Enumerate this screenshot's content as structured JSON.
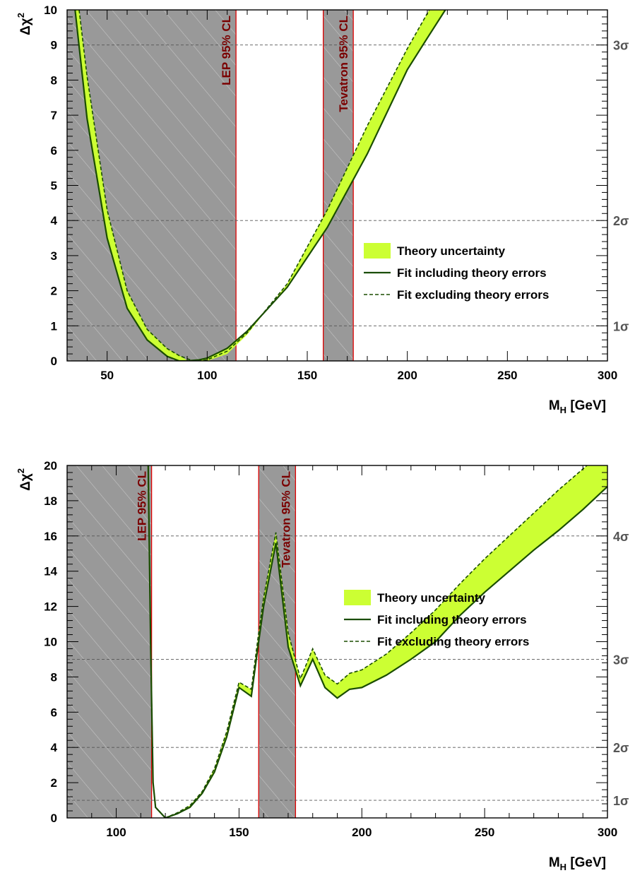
{
  "colors": {
    "band_fill": "#ccff33",
    "line": "#1a4d00",
    "excluded_region": "#999999",
    "region_border": "#dd0000",
    "region_label": "#7a0000",
    "sigma_label": "#555555"
  },
  "chart_data": [
    {
      "type": "line",
      "xlabel": "M",
      "xlabel_sub": "H",
      "xlabel_unit": "[GeV]",
      "ylabel": "Δχ",
      "ylabel_sup": "2",
      "xlim": [
        30,
        300
      ],
      "ylim": [
        0,
        10
      ],
      "x_ticks": [
        50,
        100,
        150,
        200,
        250,
        300
      ],
      "x_tick_labels": [
        "50",
        "100",
        "150",
        "200",
        "250",
        "300"
      ],
      "y_ticks": [
        0,
        1,
        2,
        3,
        4,
        5,
        6,
        7,
        8,
        9,
        10
      ],
      "y_tick_labels": [
        "0",
        "1",
        "2",
        "3",
        "4",
        "5",
        "6",
        "7",
        "8",
        "9",
        "10"
      ],
      "sigma_lines": [
        1,
        4,
        9
      ],
      "sigma_labels": [
        "1σ",
        "2σ",
        "3σ"
      ],
      "excluded_regions": [
        {
          "from": 30,
          "to": 114.4,
          "label": "LEP 95% CL"
        },
        {
          "from": 158,
          "to": 173,
          "label": "Tevatron 95% CL"
        }
      ],
      "legend": {
        "band": "Theory uncertainty",
        "solid": "Fit including theory errors",
        "dashed": "Fit excluding theory errors"
      },
      "series": [
        {
          "name": "Fit including theory errors",
          "x": [
            34,
            40,
            50,
            60,
            70,
            80,
            86,
            90,
            96,
            100,
            110,
            120,
            140,
            160,
            180,
            200,
            210,
            219
          ],
          "values": [
            10,
            6.9,
            3.5,
            1.5,
            0.6,
            0.13,
            0.0,
            0.0,
            0.03,
            0.08,
            0.36,
            0.85,
            2.1,
            3.8,
            5.9,
            8.3,
            9.2,
            10
          ]
        },
        {
          "name": "Fit excluding theory errors",
          "x": [
            36,
            40,
            50,
            60,
            70,
            80,
            86,
            93,
            96,
            100,
            110,
            120,
            140,
            160,
            180,
            200,
            211
          ],
          "values": [
            10,
            8.1,
            4.3,
            2.0,
            0.9,
            0.35,
            0.15,
            0.0,
            0.0,
            0.03,
            0.28,
            0.8,
            2.2,
            4.3,
            6.7,
            8.9,
            10
          ]
        }
      ],
      "band": {
        "x_lower": [
          34,
          40,
          50,
          60,
          70,
          80,
          86,
          90,
          96,
          100,
          110,
          120,
          140,
          160,
          180,
          200,
          210,
          219
        ],
        "lower": [
          10,
          6.9,
          3.5,
          1.5,
          0.6,
          0.13,
          0.0,
          0.0,
          0.03,
          0.08,
          0.36,
          0.85,
          2.1,
          3.8,
          5.9,
          8.3,
          9.2,
          10
        ],
        "x_upper": [
          36,
          40,
          50,
          60,
          70,
          80,
          86,
          90,
          96,
          100,
          110,
          120,
          140,
          160,
          180,
          200,
          211
        ],
        "upper": [
          10,
          8.1,
          4.3,
          2.0,
          0.9,
          0.35,
          0.15,
          0.02,
          0.0,
          0.0,
          0.2,
          0.75,
          2.2,
          4.3,
          6.7,
          8.9,
          10
        ]
      }
    },
    {
      "type": "line",
      "xlabel": "M",
      "xlabel_sub": "H",
      "xlabel_unit": "[GeV]",
      "ylabel": "Δχ",
      "ylabel_sup": "2",
      "xlim": [
        80,
        300
      ],
      "ylim": [
        0,
        20
      ],
      "x_ticks": [
        100,
        150,
        200,
        250,
        300
      ],
      "x_tick_labels": [
        "100",
        "150",
        "200",
        "250",
        "300"
      ],
      "y_ticks": [
        0,
        2,
        4,
        6,
        8,
        10,
        12,
        14,
        16,
        18,
        20
      ],
      "y_tick_labels": [
        "0",
        "2",
        "4",
        "6",
        "8",
        "10",
        "12",
        "14",
        "16",
        "18",
        "20"
      ],
      "sigma_lines": [
        1,
        4,
        9,
        16
      ],
      "sigma_labels": [
        "1σ",
        "2σ",
        "3σ",
        "4σ"
      ],
      "excluded_regions": [
        {
          "from": 80,
          "to": 114.4,
          "label": "LEP 95% CL"
        },
        {
          "from": 158,
          "to": 173,
          "label": "Tevatron 95% CL"
        }
      ],
      "legend": {
        "band": "Theory uncertainty",
        "solid": "Fit including theory errors",
        "dashed": "Fit excluding theory errors"
      },
      "series": [
        {
          "name": "Fit including theory errors",
          "x": [
            113,
            114,
            115,
            116,
            120,
            125,
            130,
            135,
            140,
            145,
            150,
            155,
            158,
            160,
            165,
            170,
            175,
            180,
            185,
            190,
            195,
            200,
            210,
            220,
            230,
            240,
            250,
            260,
            270,
            280,
            290,
            300
          ],
          "values": [
            20,
            10,
            2,
            0.6,
            0,
            0.25,
            0.6,
            1.4,
            2.6,
            4.6,
            7.4,
            6.9,
            10,
            12,
            15.6,
            9.7,
            7.5,
            9.0,
            7.4,
            6.8,
            7.3,
            7.4,
            8.1,
            9.0,
            10.0,
            11.5,
            12.8,
            14.0,
            15.2,
            16.3,
            17.5,
            18.8
          ]
        },
        {
          "name": "Fit excluding theory errors",
          "x": [
            113,
            114,
            115,
            116,
            120,
            125,
            130,
            135,
            140,
            145,
            150,
            155,
            158,
            160,
            165,
            170,
            175,
            180,
            185,
            190,
            195,
            200,
            210,
            220,
            230,
            240,
            250,
            260,
            270,
            280,
            290,
            300
          ],
          "values": [
            20,
            10,
            2,
            0.6,
            0,
            0.3,
            0.7,
            1.5,
            2.8,
            4.9,
            7.7,
            7.3,
            10.5,
            12.5,
            16.2,
            10.5,
            7.9,
            9.6,
            8.1,
            7.6,
            8.2,
            8.4,
            9.3,
            10.5,
            11.8,
            13.3,
            14.7,
            16.0,
            17.3,
            18.6,
            19.8,
            21.0
          ]
        }
      ],
      "band": {
        "x_lower": [
          113,
          114,
          115,
          116,
          120,
          125,
          130,
          135,
          140,
          145,
          150,
          155,
          158,
          160,
          165,
          170,
          175,
          180,
          185,
          190,
          195,
          200,
          210,
          220,
          230,
          240,
          250,
          260,
          270,
          280,
          290,
          300
        ],
        "lower": [
          20,
          10,
          2,
          0.6,
          0,
          0.25,
          0.6,
          1.4,
          2.6,
          4.6,
          7.4,
          6.9,
          10,
          12,
          15.6,
          9.7,
          7.5,
          9.0,
          7.4,
          6.8,
          7.3,
          7.4,
          8.1,
          9.0,
          10.0,
          11.5,
          12.8,
          14.0,
          15.2,
          16.3,
          17.5,
          18.8
        ],
        "x_upper": [
          113,
          114,
          115,
          116,
          120,
          125,
          130,
          135,
          140,
          145,
          150,
          155,
          158,
          160,
          165,
          170,
          175,
          180,
          185,
          190,
          195,
          200,
          210,
          220,
          230,
          240,
          250,
          260,
          270,
          280,
          290,
          300
        ],
        "upper": [
          20,
          10,
          2,
          0.6,
          0,
          0.3,
          0.7,
          1.5,
          2.8,
          4.9,
          7.7,
          7.3,
          10.5,
          12.5,
          16.2,
          10.5,
          7.9,
          9.6,
          8.1,
          7.6,
          8.2,
          8.4,
          9.3,
          10.5,
          11.8,
          13.3,
          14.7,
          16.0,
          17.3,
          18.6,
          19.8,
          21.0
        ]
      }
    }
  ]
}
